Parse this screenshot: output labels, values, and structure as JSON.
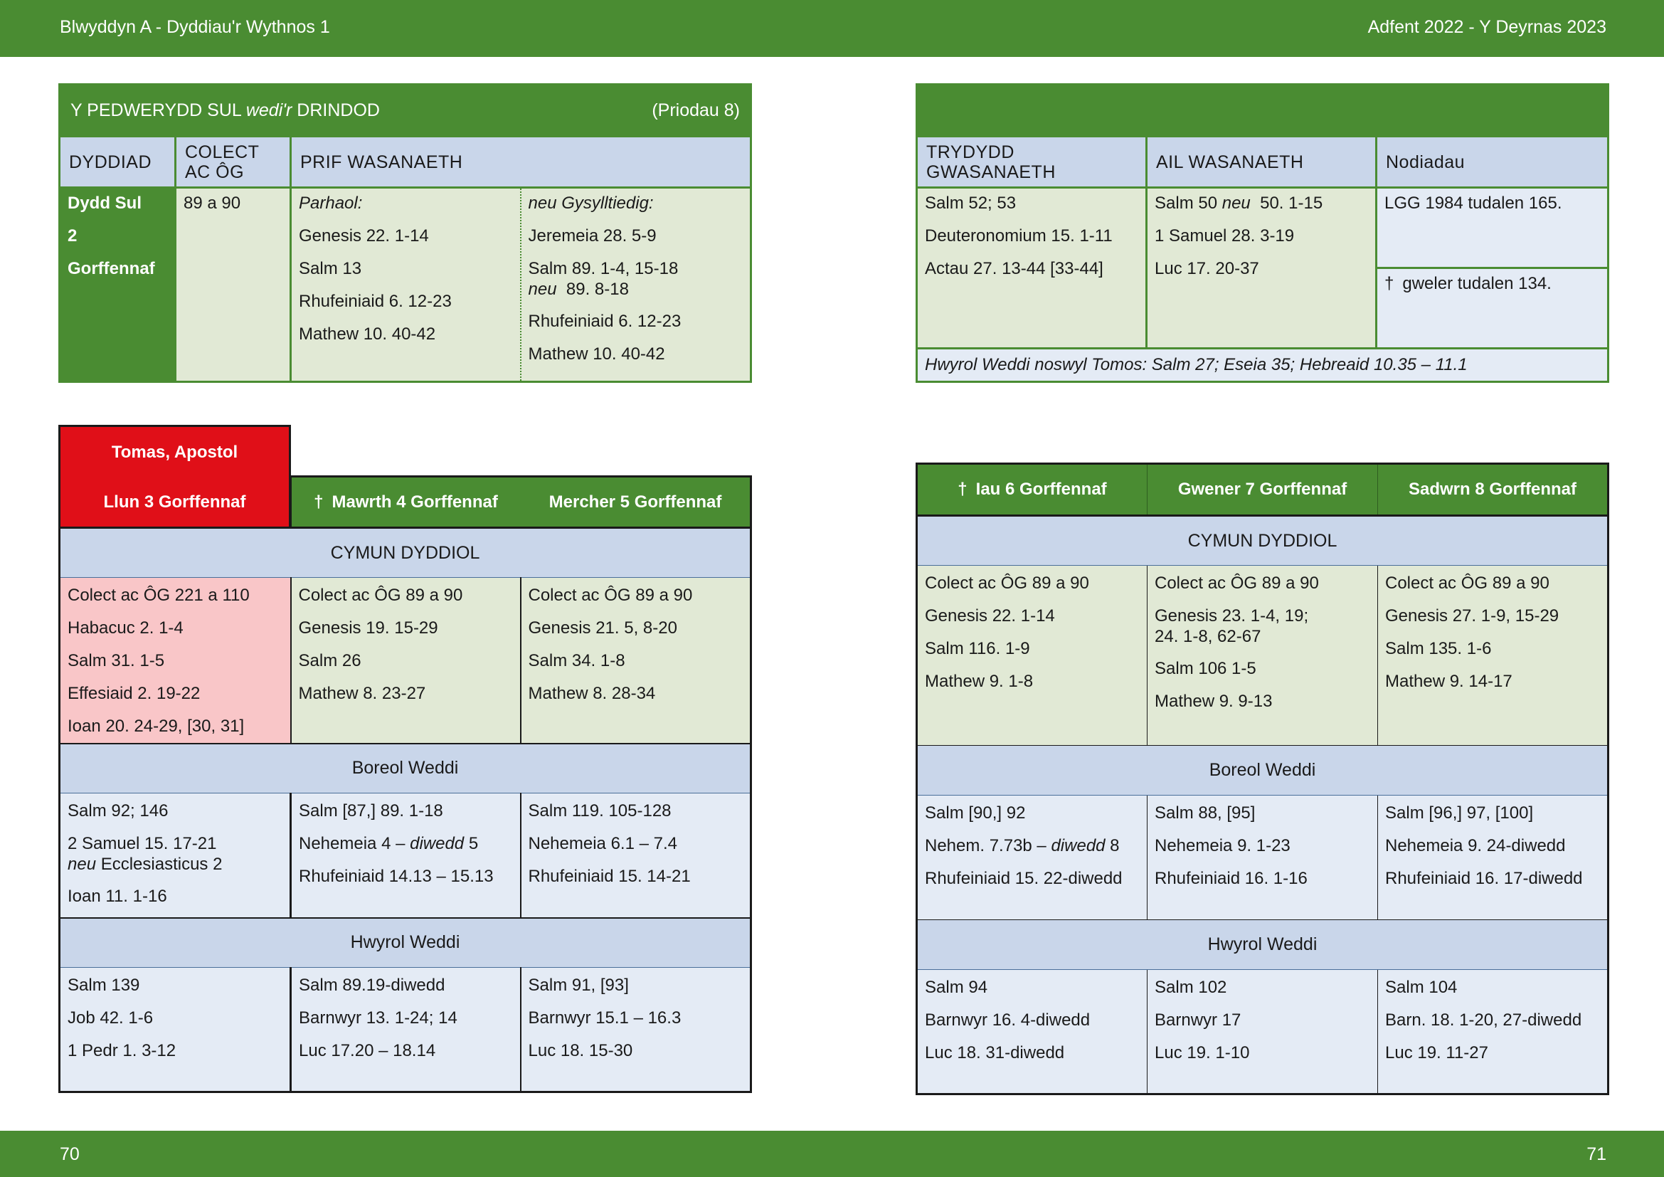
{
  "header": {
    "left": "Blwyddyn  A - Dyddiau'r Wythnos 1",
    "right": "Adfent  2022 - Y Deyrnas 2023"
  },
  "footer": {
    "left_page": "70",
    "right_page": "71"
  },
  "sunday": {
    "title_a": "Y PEDWERYDD SUL ",
    "title_b": "wedi'r",
    "title_c": " DRINDOD",
    "marriage": "(Priodau 8)",
    "col_date": "DYDDIAD",
    "col_collect": "COLECT AC ÔG",
    "col_main": "PRIF WASANAETH",
    "date_lines": [
      "Dydd Sul",
      "2",
      "Gorffennaf"
    ],
    "collect": "89 a 90",
    "cont_label": "Parhaol:",
    "cont_items": [
      "Genesis 22. 1-14",
      "Salm 13",
      "Rhufeiniaid 6. 12-23",
      "Mathew 10. 40-42"
    ],
    "alt_label": "neu Gysylltiedig:",
    "alt_items": [
      "Jeremeia 28. 5-9",
      "Salm 89. 1-4, 15-18",
      "neu",
      "89. 8-18",
      "Rhufeiniaid 6. 12-23",
      "Mathew 10. 40-42"
    ],
    "col_third": "TRYDYDD GWASANAETH",
    "col_second": "AIL WASANAETH",
    "col_notes": "Nodiadau",
    "third_items": [
      "Salm 52; 53",
      "Deuteronomium 15. 1-11",
      "Actau 27. 13-44 [33-44]"
    ],
    "second_a": "Salm 50 ",
    "second_neu": "neu",
    "second_b": "50. 1-15",
    "second_items": [
      "1 Samuel 28. 3-19",
      "Luc 17. 20-37"
    ],
    "note1": "LGG 1984 tudalen 165.",
    "dagger": "†",
    "note2": "gweler tudalen 134.",
    "evening_note": "Hwyrol Weddi noswyl Tomos: Salm 27;  Eseia 35;  Hebreaid 10.35 – 11.1"
  },
  "week_left": {
    "thomas": "Tomas, Apostol",
    "days": [
      "Llun 3 Gorffennaf",
      "Mawrth 4 Gorffennaf",
      "Mercher 5 Gorffennaf"
    ],
    "sec_cymun": "CYMUN DYDDIOL",
    "sec_boreol": "Boreol Weddi",
    "sec_hwyrol": "Hwyrol Weddi",
    "cymun": [
      [
        "Colect ac ÔG 221 a 110",
        "Habacuc 2. 1-4",
        "Salm 31. 1-5",
        "Effesiaid 2. 19-22",
        "Ioan 20. 24-29, [30, 31]"
      ],
      [
        "Colect ac ÔG 89 a 90",
        "Genesis 19. 15-29",
        "Salm 26",
        "Mathew 8. 23-27"
      ],
      [
        "Colect ac ÔG 89 a 90",
        "Genesis 21. 5, 8-20",
        "Salm 34. 1-8",
        "Mathew 8. 28-34"
      ]
    ],
    "boreol_mon": [
      "Salm 92; 146",
      "2 Samuel 15. 17-21",
      "neu",
      " Ecclesiasticus 2",
      "Ioan 11. 1-16"
    ],
    "boreol_tue_a": "Salm [87,] 89. 1-18",
    "boreol_tue_b1": "Nehemeia 4 – ",
    "boreol_tue_b2": "diwedd",
    "boreol_tue_b3": " 5",
    "boreol_tue_c": "Rhufeiniaid 14.13 – 15.13",
    "boreol_wed": [
      "Salm 119. 105-128",
      "Nehemeia 6.1 – 7.4",
      "Rhufeiniaid 15. 14-21"
    ],
    "hwyrol": [
      [
        "Salm 139",
        "Job 42. 1-6",
        "1 Pedr 1. 3-12"
      ],
      [
        "Salm 89.19-diwedd",
        "Barnwyr 13. 1-24; 14",
        "Luc 17.20 – 18.14"
      ],
      [
        "Salm 91, [93]",
        "Barnwyr 15.1 – 16.3",
        "Luc 18. 15-30"
      ]
    ]
  },
  "week_right": {
    "days": [
      "Iau 6 Gorffennaf",
      "Gwener 7 Gorffennaf",
      "Sadwrn 8 Gorffennaf"
    ],
    "sec_cymun": "CYMUN DYDDIOL",
    "sec_boreol": "Boreol Weddi",
    "sec_hwyrol": "Hwyrol Weddi",
    "cymun_thu": [
      "Colect ac ÔG 89 a 90",
      "Genesis 22. 1-14",
      "Salm 116. 1-9",
      "Mathew 9. 1-8"
    ],
    "cymun_fri": [
      "Colect ac ÔG 89 a 90",
      "Genesis 23. 1-4, 19;",
      "24. 1-8, 62-67",
      "Salm 106 1-5",
      "Mathew 9. 9-13"
    ],
    "cymun_sat": [
      "Colect ac ÔG 89 a 90",
      "Genesis 27. 1-9, 15-29",
      "Salm 135. 1-6",
      "Mathew 9. 14-17"
    ],
    "boreol_thu_a": "Salm [90,] 92",
    "boreol_thu_b1": "Nehem. 7.73b – ",
    "boreol_thu_b2": "diwedd",
    "boreol_thu_b3": " 8",
    "boreol_thu_c": "Rhufeiniaid 15. 22-diwedd",
    "boreol_fri": [
      "Salm 88, [95]",
      "Nehemeia 9. 1-23",
      "Rhufeiniaid 16. 1-16"
    ],
    "boreol_sat": [
      "Salm [96,] 97, [100]",
      "Nehemeia 9. 24-diwedd",
      "Rhufeiniaid 16. 17-diwedd"
    ],
    "hwyrol": [
      [
        "Salm 94",
        "Barnwyr 16. 4-diwedd",
        "Luc 18. 31-diwedd"
      ],
      [
        "Salm 102",
        "Barnwyr 17",
        "Luc 19. 1-10"
      ],
      [
        "Salm 104",
        "Barn. 18. 1-20, 27-diwedd",
        "Luc 19. 11-27"
      ]
    ]
  }
}
